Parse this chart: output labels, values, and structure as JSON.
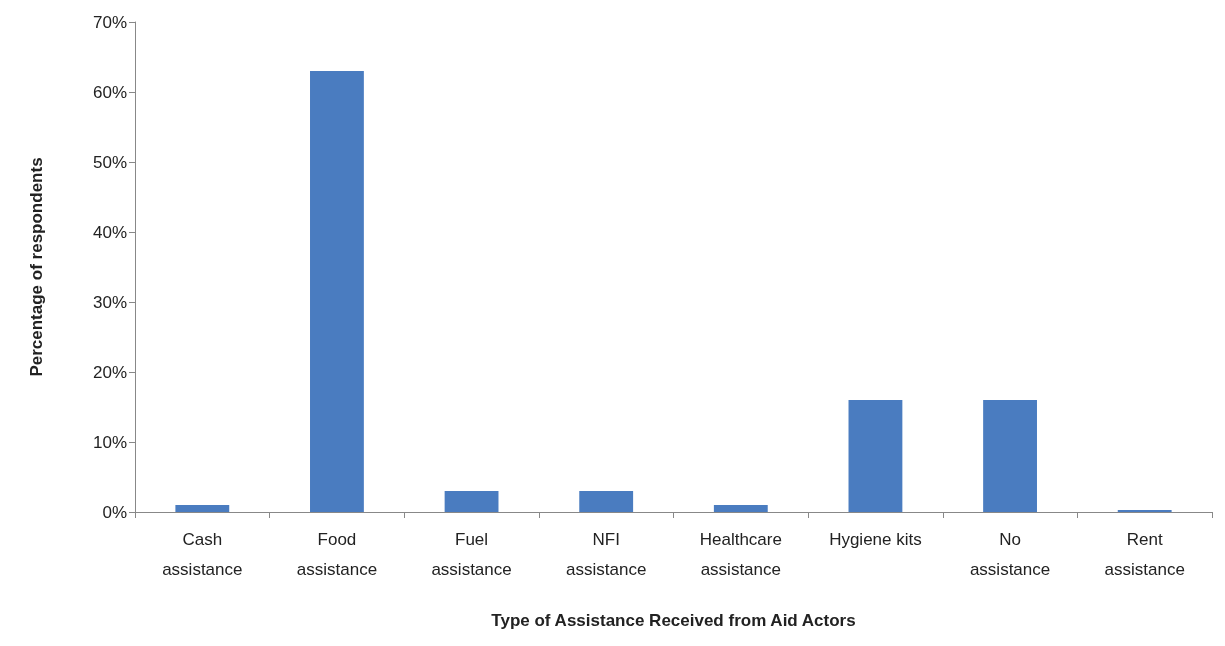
{
  "chart_data": {
    "type": "bar",
    "xlabel": "Type of Assistance Received from Aid Actors",
    "ylabel": "Percentage of respondents",
    "categories": [
      "Cash\nassistance",
      "Food\nassistance",
      "Fuel\nassistance",
      "NFI\nassistance",
      "Healthcare\nassistance",
      "Hygiene kits",
      "No\nassistance",
      "Rent\nassistance"
    ],
    "values": [
      1,
      63,
      3,
      3,
      1,
      16,
      16,
      0.3
    ],
    "color": "#4a7cc0",
    "ylim": [
      0,
      70
    ],
    "yticks": [
      {
        "value": 0,
        "label": "0%"
      },
      {
        "value": 10,
        "label": "10%"
      },
      {
        "value": 20,
        "label": "20%"
      },
      {
        "value": 30,
        "label": "30%"
      },
      {
        "value": 40,
        "label": "40%"
      },
      {
        "value": 50,
        "label": "50%"
      },
      {
        "value": 60,
        "label": "60%"
      },
      {
        "value": 70,
        "label": "70%"
      }
    ],
    "grid": false
  }
}
